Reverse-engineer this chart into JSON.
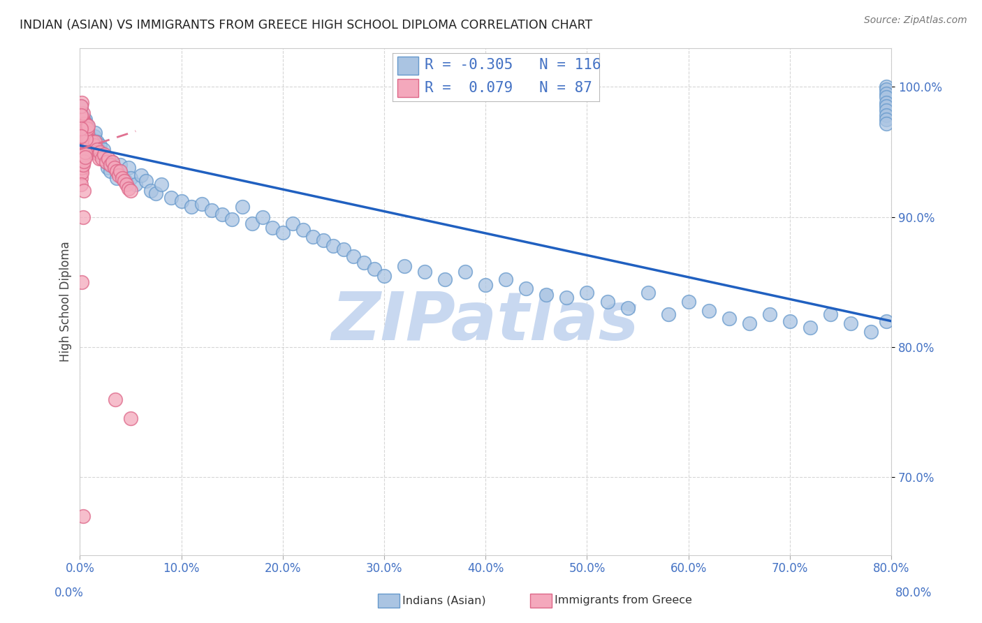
{
  "title": "INDIAN (ASIAN) VS IMMIGRANTS FROM GREECE HIGH SCHOOL DIPLOMA CORRELATION CHART",
  "source": "Source: ZipAtlas.com",
  "ylabel_label": "High School Diploma",
  "legend_label1": "Indians (Asian)",
  "legend_label2": "Immigrants from Greece",
  "R1": -0.305,
  "N1": 116,
  "R2": 0.079,
  "N2": 87,
  "scatter_blue_color": "#aac4e2",
  "scatter_pink_color": "#f4a8bc",
  "line_blue_color": "#2060c0",
  "line_pink_color": "#e07090",
  "watermark_color": "#c8d8f0",
  "title_color": "#222222",
  "axis_tick_color": "#4472c4",
  "legend_text_color": "#4472c4",
  "background_color": "#ffffff",
  "xlim": [
    0.0,
    0.8
  ],
  "ylim": [
    0.64,
    1.03
  ],
  "x_ticks": [
    0.0,
    0.1,
    0.2,
    0.3,
    0.4,
    0.5,
    0.6,
    0.7,
    0.8
  ],
  "y_ticks": [
    0.7,
    0.8,
    0.9,
    1.0
  ],
  "blue_line_x": [
    0.0,
    0.8
  ],
  "blue_line_y": [
    0.955,
    0.82
  ],
  "pink_line_x": [
    0.0,
    0.055
  ],
  "pink_line_y": [
    0.952,
    0.966
  ],
  "blue_points_x": [
    0.001,
    0.002,
    0.002,
    0.003,
    0.003,
    0.003,
    0.004,
    0.004,
    0.005,
    0.005,
    0.005,
    0.006,
    0.006,
    0.007,
    0.007,
    0.007,
    0.008,
    0.008,
    0.009,
    0.009,
    0.01,
    0.01,
    0.011,
    0.012,
    0.013,
    0.014,
    0.015,
    0.016,
    0.017,
    0.018,
    0.019,
    0.02,
    0.021,
    0.022,
    0.023,
    0.025,
    0.026,
    0.027,
    0.029,
    0.03,
    0.032,
    0.034,
    0.036,
    0.038,
    0.04,
    0.042,
    0.045,
    0.048,
    0.05,
    0.055,
    0.06,
    0.065,
    0.07,
    0.075,
    0.08,
    0.09,
    0.1,
    0.11,
    0.12,
    0.13,
    0.14,
    0.15,
    0.16,
    0.17,
    0.18,
    0.19,
    0.2,
    0.21,
    0.22,
    0.23,
    0.24,
    0.25,
    0.26,
    0.27,
    0.28,
    0.29,
    0.3,
    0.32,
    0.34,
    0.36,
    0.38,
    0.4,
    0.42,
    0.44,
    0.46,
    0.48,
    0.5,
    0.52,
    0.54,
    0.56,
    0.58,
    0.6,
    0.62,
    0.64,
    0.66,
    0.68,
    0.7,
    0.72,
    0.74,
    0.76,
    0.78,
    0.795,
    0.001,
    0.001,
    0.002,
    0.795,
    0.795,
    0.795,
    0.795,
    0.795,
    0.795,
    0.795,
    0.795,
    0.795,
    0.795,
    0.01
  ],
  "blue_points_y": [
    0.975,
    0.968,
    0.97,
    0.972,
    0.968,
    0.965,
    0.97,
    0.975,
    0.965,
    0.97,
    0.975,
    0.968,
    0.972,
    0.968,
    0.965,
    0.97,
    0.96,
    0.965,
    0.958,
    0.962,
    0.955,
    0.96,
    0.952,
    0.96,
    0.958,
    0.962,
    0.965,
    0.955,
    0.958,
    0.952,
    0.948,
    0.955,
    0.95,
    0.948,
    0.952,
    0.945,
    0.942,
    0.938,
    0.94,
    0.935,
    0.942,
    0.938,
    0.93,
    0.935,
    0.94,
    0.932,
    0.928,
    0.938,
    0.93,
    0.925,
    0.932,
    0.928,
    0.92,
    0.918,
    0.925,
    0.915,
    0.912,
    0.908,
    0.91,
    0.905,
    0.902,
    0.898,
    0.908,
    0.895,
    0.9,
    0.892,
    0.888,
    0.895,
    0.89,
    0.885,
    0.882,
    0.878,
    0.875,
    0.87,
    0.865,
    0.86,
    0.855,
    0.862,
    0.858,
    0.852,
    0.858,
    0.848,
    0.852,
    0.845,
    0.84,
    0.838,
    0.842,
    0.835,
    0.83,
    0.842,
    0.825,
    0.835,
    0.828,
    0.822,
    0.818,
    0.825,
    0.82,
    0.815,
    0.825,
    0.818,
    0.812,
    0.82,
    0.98,
    0.985,
    0.978,
    1.0,
    0.998,
    0.995,
    0.992,
    0.988,
    0.985,
    0.982,
    0.978,
    0.975,
    0.972,
    0.96
  ],
  "pink_points_x": [
    0.001,
    0.001,
    0.001,
    0.002,
    0.002,
    0.002,
    0.002,
    0.003,
    0.003,
    0.003,
    0.003,
    0.003,
    0.003,
    0.004,
    0.004,
    0.004,
    0.004,
    0.005,
    0.005,
    0.005,
    0.005,
    0.006,
    0.006,
    0.006,
    0.007,
    0.007,
    0.007,
    0.008,
    0.008,
    0.009,
    0.009,
    0.01,
    0.01,
    0.011,
    0.012,
    0.013,
    0.014,
    0.015,
    0.016,
    0.017,
    0.018,
    0.019,
    0.02,
    0.022,
    0.024,
    0.026,
    0.028,
    0.03,
    0.032,
    0.034,
    0.036,
    0.038,
    0.04,
    0.042,
    0.044,
    0.046,
    0.048,
    0.05,
    0.001,
    0.001,
    0.001,
    0.001,
    0.002,
    0.002,
    0.002,
    0.003,
    0.003,
    0.004,
    0.004,
    0.005,
    0.005,
    0.006,
    0.007,
    0.008,
    0.003,
    0.002,
    0.001,
    0.001,
    0.001,
    0.001,
    0.001,
    0.003,
    0.002,
    0.05,
    0.035,
    0.004,
    0.003
  ],
  "pink_points_y": [
    0.975,
    0.97,
    0.965,
    0.975,
    0.97,
    0.965,
    0.96,
    0.975,
    0.97,
    0.965,
    0.96,
    0.955,
    0.95,
    0.972,
    0.965,
    0.96,
    0.955,
    0.972,
    0.968,
    0.963,
    0.958,
    0.968,
    0.963,
    0.958,
    0.965,
    0.96,
    0.955,
    0.96,
    0.955,
    0.958,
    0.953,
    0.955,
    0.95,
    0.952,
    0.958,
    0.952,
    0.955,
    0.958,
    0.95,
    0.952,
    0.948,
    0.945,
    0.95,
    0.945,
    0.948,
    0.942,
    0.945,
    0.94,
    0.942,
    0.938,
    0.935,
    0.932,
    0.935,
    0.93,
    0.928,
    0.925,
    0.922,
    0.92,
    0.945,
    0.94,
    0.935,
    0.93,
    0.942,
    0.938,
    0.934,
    0.945,
    0.94,
    0.948,
    0.943,
    0.95,
    0.946,
    0.96,
    0.968,
    0.97,
    0.98,
    0.988,
    0.985,
    0.978,
    0.968,
    0.962,
    0.925,
    0.9,
    0.85,
    0.745,
    0.76,
    0.92,
    0.67
  ]
}
